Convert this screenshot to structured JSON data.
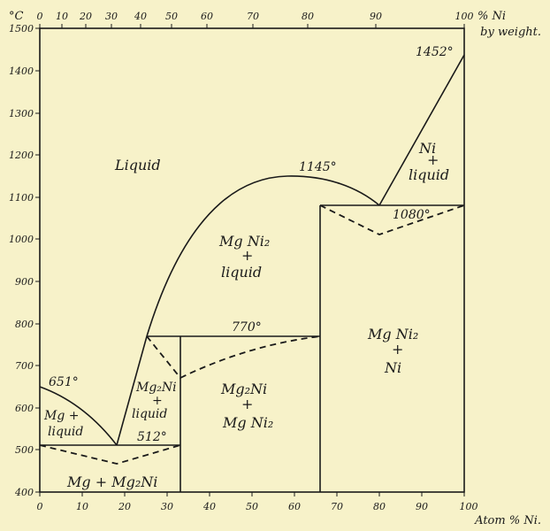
{
  "diagram": {
    "y_unit": "°C",
    "top_axis_label": "% Ni",
    "top_axis_note": "by weight.",
    "bottom_axis_label": "Atom % Ni.",
    "y_ticks": [
      "400",
      "500",
      "600",
      "700",
      "800",
      "900",
      "1000",
      "1100",
      "1200",
      "1300",
      "1400",
      "1500"
    ],
    "bottom_ticks": [
      "0",
      "10",
      "20",
      "30",
      "40",
      "50",
      "60",
      "70",
      "80",
      "90",
      "100"
    ],
    "top_ticks": [
      "0",
      "10",
      "20",
      "30",
      "40",
      "50",
      "60",
      "70",
      "80",
      "90",
      "100"
    ],
    "regions": {
      "liquid": "Liquid",
      "ni_liquid_1": "Ni",
      "ni_liquid_2": "+",
      "ni_liquid_3": "liquid",
      "mgni2_liquid_1": "Mg Ni₂",
      "mgni2_liquid_2": "+",
      "mgni2_liquid_3": "liquid",
      "mg_liquid_1": "Mg +",
      "mg_liquid_2": "liquid",
      "mg2ni_liquid_1": "Mg₂Ni",
      "mg2ni_liquid_2": "+",
      "mg2ni_liquid_3": "liquid",
      "mg2ni_mgni2_1": "Mg₂Ni",
      "mg2ni_mgni2_2": "+",
      "mg2ni_mgni2_3": "Mg Ni₂",
      "mgni2_ni_1": "Mg Ni₂",
      "mgni2_ni_2": "+",
      "mgni2_ni_3": "Ni",
      "mg_mg2ni": "Mg + Mg₂Ni"
    },
    "temperatures": {
      "mg_melt": "651°",
      "ni_melt": "1452°",
      "mgni2_max": "1145°",
      "eutectic_ni": "1080°",
      "peritectic": "770°",
      "eutectic_mg": "512°"
    }
  }
}
